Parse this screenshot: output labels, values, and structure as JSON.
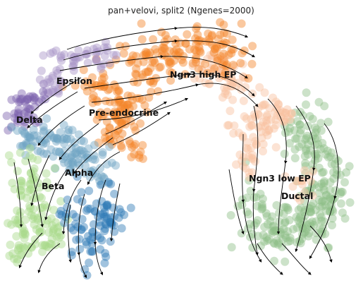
{
  "chart_data": {
    "type": "scatter",
    "title": "pan+velovi, split2 (Ngenes=2000)",
    "xlabel": "",
    "ylabel": "",
    "grid": false,
    "overlay": "velocity streamlines with arrowheads",
    "clusters": [
      {
        "name": "Ngn3 high EP",
        "color": "#f5842a"
      },
      {
        "name": "Pre-endocrine",
        "color": "#f5842a"
      },
      {
        "name": "Epsilon",
        "color": "#a895c8"
      },
      {
        "name": "Delta",
        "color": "#7d62ad"
      },
      {
        "name": "Alpha",
        "color": "#6fa3c4"
      },
      {
        "name": "Beta",
        "color": "#a9d98a"
      },
      {
        "name": "Ngn3 low EP",
        "color": "#f9c19f"
      },
      {
        "name": "Ductal",
        "color": "#8fbf88"
      }
    ],
    "extra_color": {
      "name": "unlabeled-blue",
      "color": "#2f7bb5"
    }
  }
}
